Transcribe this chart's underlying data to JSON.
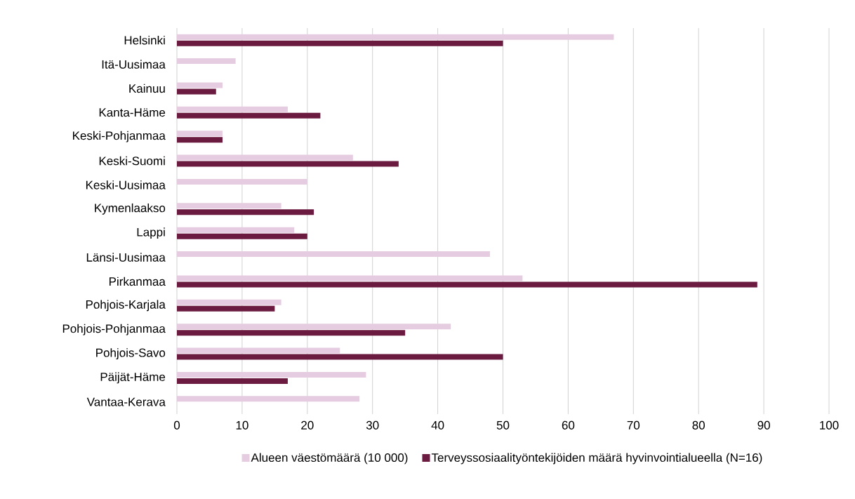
{
  "chart_data": {
    "type": "bar",
    "orientation": "horizontal",
    "categories": [
      "Helsinki",
      "Itä-Uusimaa",
      "Kainuu",
      "Kanta-Häme",
      "Keski-Pohjanmaa",
      "Keski-Suomi",
      "Keski-Uusimaa",
      "Kymenlaakso",
      "Lappi",
      "Länsi-Uusimaa",
      "Pirkanmaa",
      "Pohjois-Karjala",
      "Pohjois-Pohjanmaa",
      "Pohjois-Savo",
      "Päijät-Häme",
      "Vantaa-Kerava"
    ],
    "series": [
      {
        "name": "Alueen väestömäärä (10 000)",
        "color": "#e6cce0",
        "values": [
          67,
          9,
          7,
          17,
          7,
          27,
          20,
          16,
          18,
          48,
          53,
          16,
          42,
          25,
          29,
          28
        ]
      },
      {
        "name": "Terveyssosiaalityöntekijöiden määrä hyvinvointialueella (N=16)",
        "color": "#6b1a40",
        "values": [
          50,
          null,
          6,
          22,
          7,
          34,
          null,
          21,
          20,
          null,
          89,
          15,
          35,
          50,
          17,
          null
        ]
      }
    ],
    "xlim": [
      0,
      100
    ],
    "xticks": [
      0,
      10,
      20,
      30,
      40,
      50,
      60,
      70,
      80,
      90,
      100
    ],
    "grid": "x",
    "legend": "bottom"
  }
}
